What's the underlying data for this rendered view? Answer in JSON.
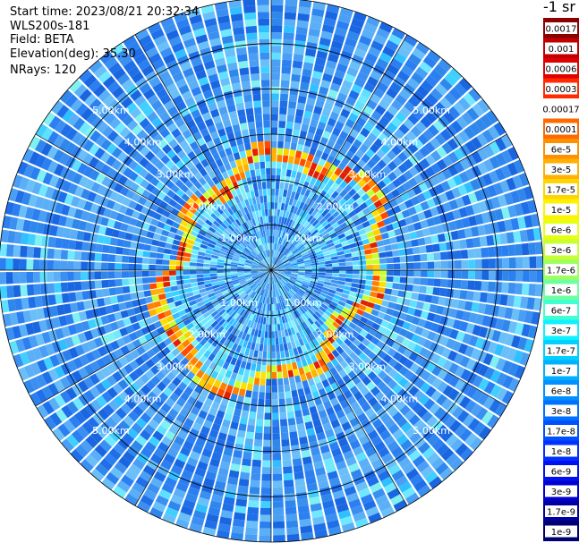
{
  "header": {
    "start_time": "Start time: 2023/08/21 20:32:34",
    "instrument": "WLS200s-181",
    "field": "Field: BETA",
    "elevation": "Elevation(deg): 35.30",
    "nrays": "NRays: 120"
  },
  "chart_data": {
    "type": "heatmap",
    "projection": "polar",
    "nrays": 120,
    "range_unit": "km",
    "range_max_km": 6.0,
    "range_rings_km": [
      1,
      2,
      3,
      4,
      5,
      6
    ],
    "range_ring_labels": [
      "1.00km",
      "2.00km",
      "3.00km",
      "4.00km",
      "5.00km"
    ],
    "radial_lines_deg": [
      0,
      30,
      60,
      90,
      120,
      150,
      180,
      210,
      240,
      270,
      300,
      330
    ],
    "colorbar": {
      "title": "-1 sr",
      "labels": [
        "0.0017",
        "0.001",
        "0.0006",
        "0.0003",
        "0.00017",
        "0.0001",
        "6e-5",
        "3e-5",
        "1.7e-5",
        "1e-5",
        "6e-6",
        "3e-6",
        "1.7e-6",
        "1e-6",
        "6e-7",
        "3e-7",
        "1.7e-7",
        "1e-7",
        "6e-8",
        "3e-8",
        "1.7e-8",
        "1e-8",
        "6e-9",
        "3e-9",
        "1.7e-9",
        "1e-9"
      ],
      "colors": [
        "#8b0000",
        "#c00000",
        "#e00000",
        "#ff2a00",
        "#ffffff",
        "#ff6a00",
        "#ff9000",
        "#ffb000",
        "#ffd400",
        "#fff200",
        "#e8ff10",
        "#c8ff30",
        "#a0ff60",
        "#70ffa0",
        "#40ffd0",
        "#10f0ff",
        "#00d0ff",
        "#00b0ff",
        "#0090ff",
        "#0070ff",
        "#0050ff",
        "#0030ff",
        "#0010f0",
        "#0000d0",
        "#0000a0",
        "#000070"
      ]
    },
    "colors": {
      "background_field": "#3a8ff0",
      "ring_feature_inner": "#ffd400",
      "ring_feature_peak": "#e02000"
    }
  }
}
